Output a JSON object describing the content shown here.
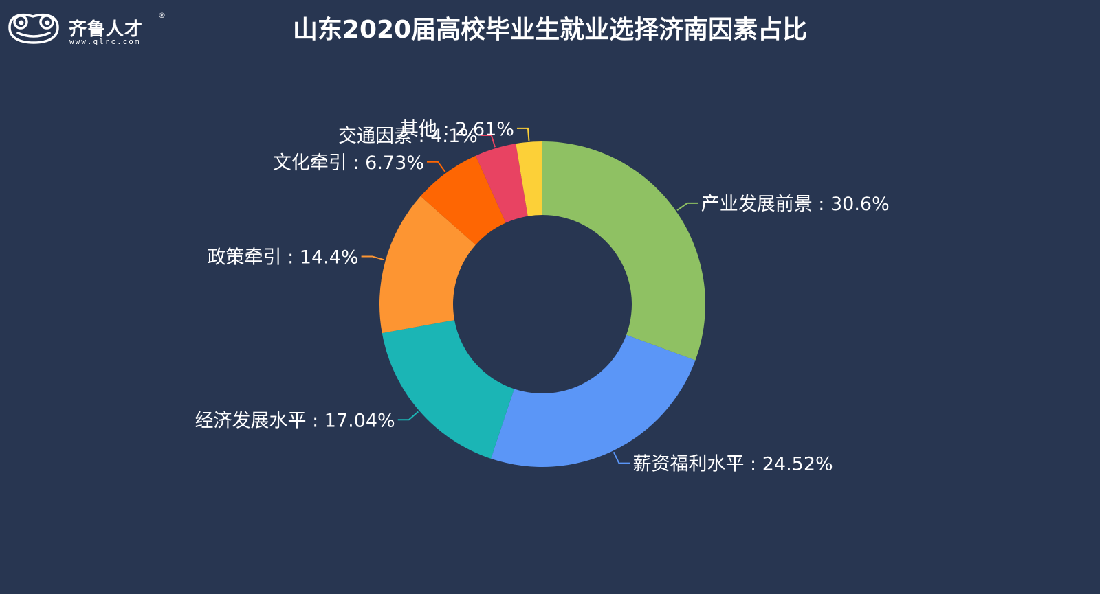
{
  "logo": {
    "name": "齐鲁人才",
    "registered": "®",
    "url": "www.qlrc.com"
  },
  "chart_data": {
    "type": "pie",
    "subtype": "donut",
    "title": "山东2020届高校毕业生就业选择济南因素占比",
    "separator": " : ",
    "slices": [
      {
        "label": "产业发展前景",
        "value": 30.6,
        "display": "30.6%",
        "color": "#8fc163"
      },
      {
        "label": "薪资福利水平",
        "value": 24.52,
        "display": "24.52%",
        "color": "#5b96f7"
      },
      {
        "label": "经济发展水平",
        "value": 17.04,
        "display": "17.04%",
        "color": "#1bb5b5"
      },
      {
        "label": "政策牵引",
        "value": 14.4,
        "display": "14.4%",
        "color": "#fd9532"
      },
      {
        "label": "文化牵引",
        "value": 6.73,
        "display": "6.73%",
        "color": "#fe6603"
      },
      {
        "label": "交通因素",
        "value": 4.1,
        "display": "4.1%",
        "color": "#e84362"
      },
      {
        "label": "其他",
        "value": 2.61,
        "display": "2.61%",
        "color": "#fcd038"
      }
    ]
  }
}
